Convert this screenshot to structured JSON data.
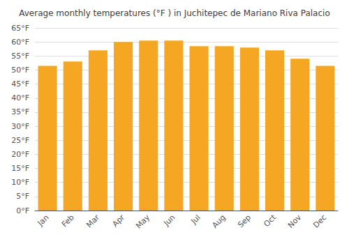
{
  "chart_data": {
    "type": "bar",
    "title": "Average monthly temperatures (°F ) in Juchitepec de Mariano Riva Palacio",
    "categories": [
      "Jan",
      "Feb",
      "Mar",
      "Apr",
      "May",
      "Jun",
      "Jul",
      "Aug",
      "Sep",
      "Oct",
      "Nov",
      "Dec"
    ],
    "values": [
      51.5,
      53.0,
      57.0,
      60.0,
      60.5,
      60.5,
      58.5,
      58.5,
      58.0,
      57.0,
      54.0,
      51.5
    ],
    "color": "#F5A623",
    "ylim": [
      0,
      65
    ],
    "yticks": [
      {
        "value": 0,
        "label": "0°F"
      },
      {
        "value": 5,
        "label": "5°F"
      },
      {
        "value": 10,
        "label": "10°F"
      },
      {
        "value": 15,
        "label": "15°F"
      },
      {
        "value": 20,
        "label": "20°F"
      },
      {
        "value": 25,
        "label": "25°F"
      },
      {
        "value": 30,
        "label": "30°F"
      },
      {
        "value": 35,
        "label": "35°F"
      },
      {
        "value": 40,
        "label": "40°F"
      },
      {
        "value": 45,
        "label": "45°F"
      },
      {
        "value": 50,
        "label": "50°F"
      },
      {
        "value": 55,
        "label": "55°F"
      },
      {
        "value": 60,
        "label": "60°F"
      },
      {
        "value": 65,
        "label": "65°F"
      }
    ],
    "grid": true
  }
}
